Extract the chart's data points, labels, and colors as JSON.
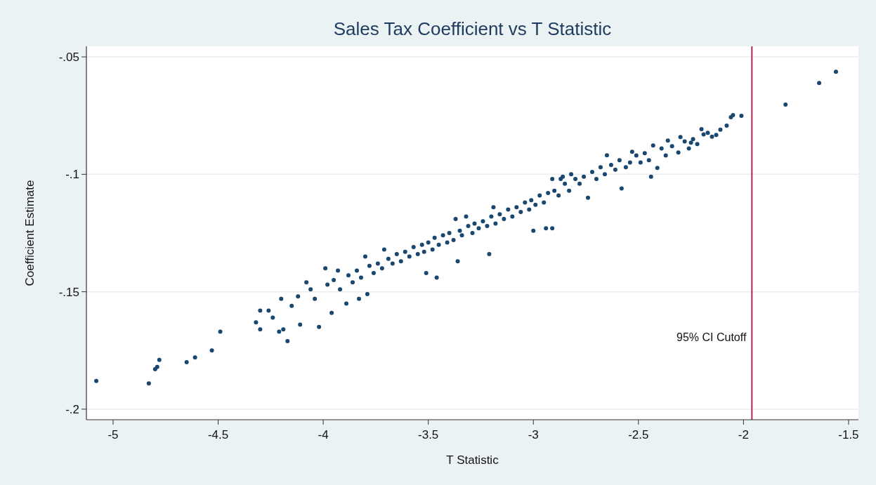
{
  "chart_data": {
    "type": "scatter",
    "title": "Sales Tax Coefficient vs T Statistic",
    "xlabel": "T Statistic",
    "ylabel": "Coefficient Estimate",
    "xlim": [
      -5.127,
      -1.453
    ],
    "ylim": [
      -0.2045,
      -0.0455
    ],
    "xticks": [
      -5,
      -4.5,
      -4,
      -3.5,
      -3,
      -2.5,
      -2,
      -1.5
    ],
    "yticks": [
      {
        "value": -0.05,
        "label": "-.05"
      },
      {
        "value": -0.1,
        "label": "-.1"
      },
      {
        "value": -0.15,
        "label": "-.15"
      },
      {
        "value": -0.2,
        "label": "-.2"
      }
    ],
    "grid": "y",
    "marker": "circle",
    "ref_lines": [
      {
        "axis": "x",
        "value": -1.96,
        "label": "95% CI Cutoff",
        "color": "#b5284d"
      }
    ],
    "series": [
      {
        "color": "#1a476f",
        "x": [
          -5.08,
          -4.83,
          -4.8,
          -4.79,
          -4.78,
          -4.65,
          -4.61,
          -4.53,
          -4.49,
          -4.32,
          -4.3,
          -4.3,
          -4.26,
          -4.24,
          -4.21,
          -4.2,
          -4.17,
          -4.19,
          -4.02,
          -3.99,
          -3.93,
          -4.08,
          -4.11,
          -3.96,
          -3.89,
          -3.83,
          -3.79,
          -3.8,
          -3.71,
          -3.46,
          -3.51,
          -3.36,
          -3.21,
          -3.0,
          -2.94,
          -3.19,
          -2.91,
          -2.86,
          -3.37,
          -3.32,
          -1.8,
          -1.64,
          -1.56,
          -2.01,
          -2.05,
          -2.06,
          -2.08,
          -2.13,
          -2.17,
          -2.2,
          -2.22,
          -2.25,
          -2.3,
          -2.31,
          -2.36,
          -2.41,
          -2.44,
          -2.43,
          -2.65,
          -2.58,
          -2.74,
          -2.82,
          -2.87,
          -2.91,
          -2.53,
          -4.15,
          -4.12,
          -4.06,
          -4.04,
          -3.98,
          -3.95,
          -3.92,
          -3.88,
          -3.86,
          -3.84,
          -3.82,
          -3.78,
          -3.76,
          -3.74,
          -3.72,
          -3.69,
          -3.67,
          -3.65,
          -3.63,
          -3.61,
          -3.59,
          -3.57,
          -3.55,
          -3.53,
          -3.52,
          -3.5,
          -3.48,
          -3.47,
          -3.45,
          -3.43,
          -3.41,
          -3.4,
          -3.38,
          -3.35,
          -3.34,
          -3.31,
          -3.29,
          -3.28,
          -3.26,
          -3.24,
          -3.22,
          -3.2,
          -3.18,
          -3.16,
          -3.14,
          -3.12,
          -3.1,
          -3.08,
          -3.06,
          -3.04,
          -3.02,
          -3.01,
          -2.99,
          -2.97,
          -2.95,
          -2.93,
          -2.9,
          -2.88,
          -2.85,
          -2.83,
          -2.8,
          -2.78,
          -2.76,
          -2.72,
          -2.7,
          -2.68,
          -2.66,
          -2.63,
          -2.61,
          -2.59,
          -2.56,
          -2.54,
          -2.51,
          -2.49,
          -2.47,
          -2.45,
          -2.39,
          -2.37,
          -2.34,
          -2.28,
          -2.26,
          -2.24,
          -2.19,
          -2.15,
          -2.11
        ],
        "values": [
          -0.188,
          -0.189,
          -0.183,
          -0.182,
          -0.179,
          -0.18,
          -0.178,
          -0.175,
          -0.167,
          -0.163,
          -0.166,
          -0.158,
          -0.158,
          -0.161,
          -0.167,
          -0.153,
          -0.171,
          -0.166,
          -0.165,
          -0.14,
          -0.141,
          -0.146,
          -0.164,
          -0.159,
          -0.155,
          -0.153,
          -0.151,
          -0.135,
          -0.132,
          -0.144,
          -0.142,
          -0.137,
          -0.134,
          -0.124,
          -0.123,
          -0.114,
          -0.102,
          -0.101,
          -0.119,
          -0.118,
          -0.0703,
          -0.0611,
          -0.0563,
          -0.0751,
          -0.0748,
          -0.0757,
          -0.0793,
          -0.0832,
          -0.0823,
          -0.0808,
          -0.0871,
          -0.0865,
          -0.0841,
          -0.0907,
          -0.0856,
          -0.0973,
          -0.101,
          -0.0877,
          -0.0919,
          -0.106,
          -0.11,
          -0.1,
          -0.102,
          -0.123,
          -0.0904,
          -0.156,
          -0.152,
          -0.149,
          -0.153,
          -0.147,
          -0.145,
          -0.149,
          -0.143,
          -0.146,
          -0.141,
          -0.144,
          -0.139,
          -0.142,
          -0.138,
          -0.14,
          -0.136,
          -0.138,
          -0.134,
          -0.137,
          -0.133,
          -0.135,
          -0.131,
          -0.134,
          -0.13,
          -0.133,
          -0.129,
          -0.132,
          -0.127,
          -0.13,
          -0.126,
          -0.129,
          -0.125,
          -0.128,
          -0.124,
          -0.126,
          -0.122,
          -0.125,
          -0.121,
          -0.123,
          -0.12,
          -0.122,
          -0.118,
          -0.121,
          -0.117,
          -0.119,
          -0.115,
          -0.118,
          -0.114,
          -0.116,
          -0.112,
          -0.115,
          -0.111,
          -0.113,
          -0.109,
          -0.112,
          -0.108,
          -0.107,
          -0.109,
          -0.104,
          -0.107,
          -0.102,
          -0.104,
          -0.101,
          -0.099,
          -0.102,
          -0.097,
          -0.1,
          -0.096,
          -0.098,
          -0.094,
          -0.097,
          -0.095,
          -0.092,
          -0.095,
          -0.091,
          -0.094,
          -0.089,
          -0.092,
          -0.088,
          -0.086,
          -0.089,
          -0.085,
          -0.083,
          -0.084,
          -0.081
        ]
      }
    ]
  }
}
